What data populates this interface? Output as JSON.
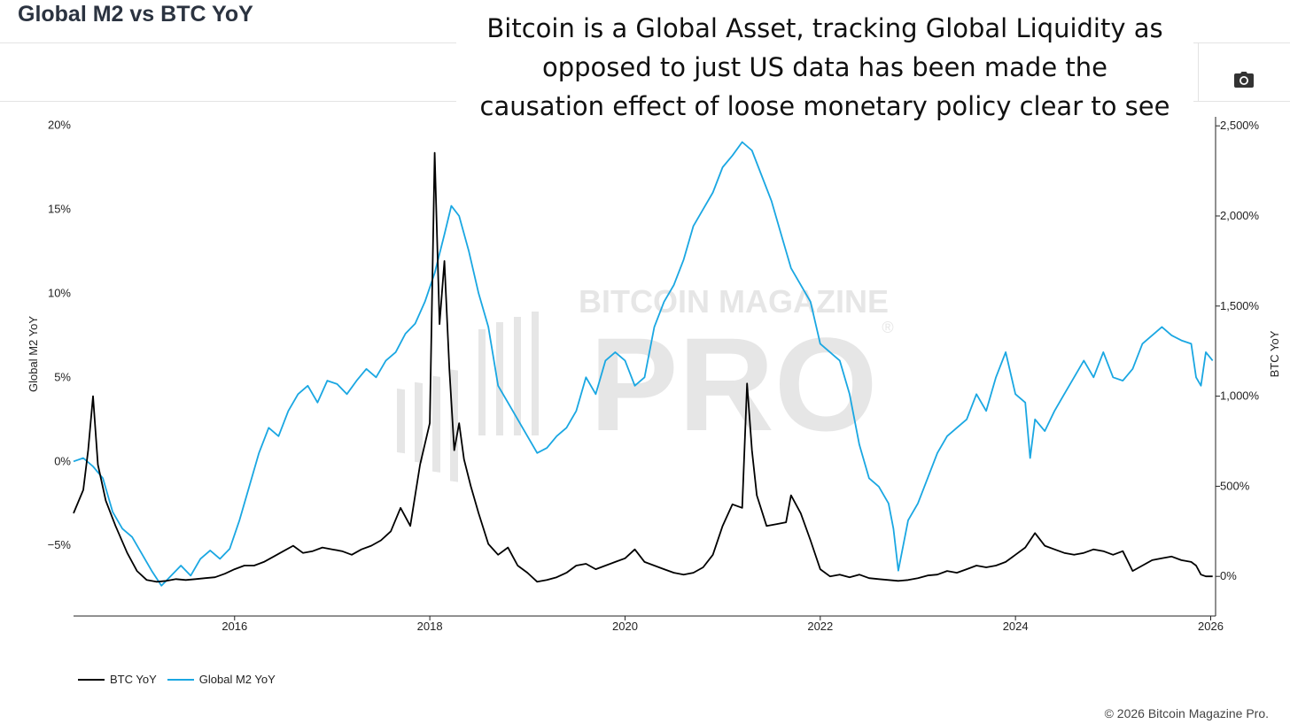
{
  "page": {
    "title": "Global M2 vs BTC YoY",
    "overlay_lines": [
      "Bitcoin is a Global Asset, tracking Global Liquidity as",
      "opposed to just US data has been made the",
      "causation effect of loose monetary policy clear to see"
    ],
    "watermark_line1": "BITCOIN MAGAZINE",
    "watermark_line2": "PRO",
    "watermark_mark": "®",
    "copyright": "© 2026 Bitcoin Magazine Pro.",
    "camera_icon": "camera-icon"
  },
  "chart_data": {
    "type": "line",
    "title": "Global M2 vs BTC YoY",
    "xlabel": "",
    "ylabel_left": "Global M2 YoY",
    "ylabel_right": "BTC YoY",
    "x_ticks": [
      "2016",
      "2018",
      "2020",
      "2022",
      "2024",
      "2026"
    ],
    "x_range": [
      2014.35,
      2026.05
    ],
    "y_left": {
      "range": [
        -9.2,
        20.5
      ],
      "ticks": [
        -5,
        0,
        5,
        10,
        15,
        20
      ],
      "tick_labels": [
        "−5%",
        "0%",
        "5%",
        "10%",
        "15%",
        "20%"
      ]
    },
    "y_right": {
      "range": [
        -220,
        2550
      ],
      "ticks": [
        0,
        500,
        1000,
        1500,
        2000,
        2500
      ],
      "tick_labels": [
        "0%",
        "500%",
        "1,000%",
        "1,500%",
        "2,000%",
        "2,500%"
      ]
    },
    "series": [
      {
        "name": "BTC YoY",
        "axis": "right",
        "color": "#000000",
        "points": [
          [
            2014.35,
            350
          ],
          [
            2014.45,
            480
          ],
          [
            2014.5,
            700
          ],
          [
            2014.55,
            1000
          ],
          [
            2014.6,
            620
          ],
          [
            2014.68,
            420
          ],
          [
            2014.78,
            280
          ],
          [
            2014.9,
            130
          ],
          [
            2015.0,
            30
          ],
          [
            2015.1,
            -20
          ],
          [
            2015.2,
            -30
          ],
          [
            2015.3,
            -25
          ],
          [
            2015.4,
            -15
          ],
          [
            2015.5,
            -20
          ],
          [
            2015.6,
            -15
          ],
          [
            2015.7,
            -10
          ],
          [
            2015.8,
            -5
          ],
          [
            2015.9,
            15
          ],
          [
            2016.0,
            40
          ],
          [
            2016.1,
            60
          ],
          [
            2016.2,
            60
          ],
          [
            2016.3,
            80
          ],
          [
            2016.4,
            110
          ],
          [
            2016.5,
            140
          ],
          [
            2016.6,
            170
          ],
          [
            2016.7,
            130
          ],
          [
            2016.8,
            140
          ],
          [
            2016.9,
            160
          ],
          [
            2017.0,
            150
          ],
          [
            2017.1,
            140
          ],
          [
            2017.2,
            120
          ],
          [
            2017.3,
            150
          ],
          [
            2017.4,
            170
          ],
          [
            2017.5,
            200
          ],
          [
            2017.6,
            250
          ],
          [
            2017.7,
            380
          ],
          [
            2017.8,
            280
          ],
          [
            2017.9,
            620
          ],
          [
            2018.0,
            850
          ],
          [
            2018.05,
            2350
          ],
          [
            2018.1,
            1400
          ],
          [
            2018.15,
            1750
          ],
          [
            2018.2,
            1150
          ],
          [
            2018.25,
            700
          ],
          [
            2018.3,
            850
          ],
          [
            2018.35,
            650
          ],
          [
            2018.42,
            500
          ],
          [
            2018.5,
            350
          ],
          [
            2018.6,
            180
          ],
          [
            2018.7,
            120
          ],
          [
            2018.8,
            160
          ],
          [
            2018.9,
            60
          ],
          [
            2019.0,
            20
          ],
          [
            2019.1,
            -30
          ],
          [
            2019.2,
            -20
          ],
          [
            2019.3,
            -5
          ],
          [
            2019.4,
            20
          ],
          [
            2019.5,
            60
          ],
          [
            2019.6,
            70
          ],
          [
            2019.7,
            40
          ],
          [
            2019.8,
            60
          ],
          [
            2019.9,
            80
          ],
          [
            2020.0,
            100
          ],
          [
            2020.1,
            150
          ],
          [
            2020.2,
            80
          ],
          [
            2020.3,
            60
          ],
          [
            2020.4,
            40
          ],
          [
            2020.5,
            20
          ],
          [
            2020.6,
            10
          ],
          [
            2020.7,
            20
          ],
          [
            2020.8,
            50
          ],
          [
            2020.9,
            120
          ],
          [
            2021.0,
            280
          ],
          [
            2021.1,
            400
          ],
          [
            2021.2,
            380
          ],
          [
            2021.25,
            1070
          ],
          [
            2021.3,
            700
          ],
          [
            2021.35,
            450
          ],
          [
            2021.45,
            280
          ],
          [
            2021.55,
            290
          ],
          [
            2021.65,
            300
          ],
          [
            2021.7,
            450
          ],
          [
            2021.8,
            350
          ],
          [
            2021.9,
            200
          ],
          [
            2022.0,
            40
          ],
          [
            2022.1,
            0
          ],
          [
            2022.2,
            10
          ],
          [
            2022.3,
            -5
          ],
          [
            2022.4,
            10
          ],
          [
            2022.5,
            -10
          ],
          [
            2022.6,
            -15
          ],
          [
            2022.7,
            -20
          ],
          [
            2022.8,
            -25
          ],
          [
            2022.9,
            -20
          ],
          [
            2023.0,
            -10
          ],
          [
            2023.1,
            5
          ],
          [
            2023.2,
            10
          ],
          [
            2023.3,
            30
          ],
          [
            2023.4,
            20
          ],
          [
            2023.5,
            40
          ],
          [
            2023.6,
            60
          ],
          [
            2023.7,
            50
          ],
          [
            2023.8,
            60
          ],
          [
            2023.9,
            80
          ],
          [
            2024.0,
            120
          ],
          [
            2024.1,
            160
          ],
          [
            2024.2,
            240
          ],
          [
            2024.3,
            170
          ],
          [
            2024.4,
            150
          ],
          [
            2024.5,
            130
          ],
          [
            2024.6,
            120
          ],
          [
            2024.7,
            130
          ],
          [
            2024.8,
            150
          ],
          [
            2024.9,
            140
          ],
          [
            2025.0,
            120
          ],
          [
            2025.1,
            140
          ],
          [
            2025.2,
            30
          ],
          [
            2025.3,
            60
          ],
          [
            2025.4,
            90
          ],
          [
            2025.5,
            100
          ],
          [
            2025.6,
            110
          ],
          [
            2025.7,
            90
          ],
          [
            2025.8,
            80
          ],
          [
            2025.85,
            60
          ],
          [
            2025.9,
            10
          ],
          [
            2025.95,
            0
          ],
          [
            2026.02,
            0
          ]
        ]
      },
      {
        "name": "Global M2 YoY",
        "axis": "left",
        "color": "#1aa7e2",
        "points": [
          [
            2014.35,
            0
          ],
          [
            2014.45,
            0.2
          ],
          [
            2014.55,
            -0.3
          ],
          [
            2014.65,
            -1
          ],
          [
            2014.75,
            -3
          ],
          [
            2014.85,
            -4
          ],
          [
            2014.95,
            -4.5
          ],
          [
            2015.05,
            -5.5
          ],
          [
            2015.15,
            -6.5
          ],
          [
            2015.25,
            -7.4
          ],
          [
            2015.35,
            -6.8
          ],
          [
            2015.45,
            -6.2
          ],
          [
            2015.55,
            -6.8
          ],
          [
            2015.65,
            -5.8
          ],
          [
            2015.75,
            -5.3
          ],
          [
            2015.85,
            -5.8
          ],
          [
            2015.95,
            -5.2
          ],
          [
            2016.05,
            -3.5
          ],
          [
            2016.15,
            -1.5
          ],
          [
            2016.25,
            0.5
          ],
          [
            2016.35,
            2
          ],
          [
            2016.45,
            1.5
          ],
          [
            2016.55,
            3
          ],
          [
            2016.65,
            4
          ],
          [
            2016.75,
            4.5
          ],
          [
            2016.85,
            3.5
          ],
          [
            2016.95,
            4.8
          ],
          [
            2017.05,
            4.6
          ],
          [
            2017.15,
            4
          ],
          [
            2017.25,
            4.8
          ],
          [
            2017.35,
            5.5
          ],
          [
            2017.45,
            5.0
          ],
          [
            2017.55,
            6
          ],
          [
            2017.65,
            6.5
          ],
          [
            2017.75,
            7.6
          ],
          [
            2017.85,
            8.2
          ],
          [
            2017.95,
            9.5
          ],
          [
            2018.05,
            11.2
          ],
          [
            2018.15,
            13.5
          ],
          [
            2018.22,
            15.2
          ],
          [
            2018.3,
            14.6
          ],
          [
            2018.4,
            12.5
          ],
          [
            2018.5,
            10
          ],
          [
            2018.6,
            8
          ],
          [
            2018.7,
            4.5
          ],
          [
            2018.8,
            3.5
          ],
          [
            2018.9,
            2.5
          ],
          [
            2019.0,
            1.5
          ],
          [
            2019.1,
            0.5
          ],
          [
            2019.2,
            0.8
          ],
          [
            2019.3,
            1.5
          ],
          [
            2019.4,
            2
          ],
          [
            2019.5,
            3
          ],
          [
            2019.6,
            5
          ],
          [
            2019.7,
            4
          ],
          [
            2019.8,
            6
          ],
          [
            2019.9,
            6.5
          ],
          [
            2020.0,
            6
          ],
          [
            2020.1,
            4.5
          ],
          [
            2020.2,
            5
          ],
          [
            2020.3,
            8
          ],
          [
            2020.4,
            9.5
          ],
          [
            2020.5,
            10.5
          ],
          [
            2020.6,
            12
          ],
          [
            2020.7,
            14
          ],
          [
            2020.8,
            15
          ],
          [
            2020.9,
            16
          ],
          [
            2021.0,
            17.5
          ],
          [
            2021.1,
            18.2
          ],
          [
            2021.2,
            19
          ],
          [
            2021.3,
            18.5
          ],
          [
            2021.4,
            17
          ],
          [
            2021.5,
            15.5
          ],
          [
            2021.6,
            13.5
          ],
          [
            2021.7,
            11.5
          ],
          [
            2021.8,
            10.5
          ],
          [
            2021.9,
            9.5
          ],
          [
            2022.0,
            7
          ],
          [
            2022.1,
            6.5
          ],
          [
            2022.2,
            6
          ],
          [
            2022.3,
            4
          ],
          [
            2022.4,
            1
          ],
          [
            2022.5,
            -1
          ],
          [
            2022.6,
            -1.5
          ],
          [
            2022.7,
            -2.5
          ],
          [
            2022.75,
            -4
          ],
          [
            2022.8,
            -6.5
          ],
          [
            2022.9,
            -3.5
          ],
          [
            2023.0,
            -2.5
          ],
          [
            2023.1,
            -1
          ],
          [
            2023.2,
            0.5
          ],
          [
            2023.3,
            1.5
          ],
          [
            2023.4,
            2
          ],
          [
            2023.5,
            2.5
          ],
          [
            2023.6,
            4
          ],
          [
            2023.7,
            3
          ],
          [
            2023.8,
            5
          ],
          [
            2023.9,
            6.5
          ],
          [
            2024.0,
            4
          ],
          [
            2024.1,
            3.5
          ],
          [
            2024.15,
            0.2
          ],
          [
            2024.2,
            2.5
          ],
          [
            2024.3,
            1.8
          ],
          [
            2024.4,
            3
          ],
          [
            2024.5,
            4
          ],
          [
            2024.6,
            5
          ],
          [
            2024.7,
            6
          ],
          [
            2024.8,
            5
          ],
          [
            2024.9,
            6.5
          ],
          [
            2025.0,
            5
          ],
          [
            2025.1,
            4.8
          ],
          [
            2025.2,
            5.5
          ],
          [
            2025.3,
            7
          ],
          [
            2025.4,
            7.5
          ],
          [
            2025.5,
            8
          ],
          [
            2025.6,
            7.5
          ],
          [
            2025.7,
            7.2
          ],
          [
            2025.8,
            7
          ],
          [
            2025.85,
            5
          ],
          [
            2025.9,
            4.5
          ],
          [
            2025.95,
            6.5
          ],
          [
            2026.02,
            6
          ]
        ]
      }
    ],
    "legend": [
      "BTC YoY",
      "Global M2 YoY"
    ],
    "legend_position": "bottom-left",
    "grid": false
  }
}
